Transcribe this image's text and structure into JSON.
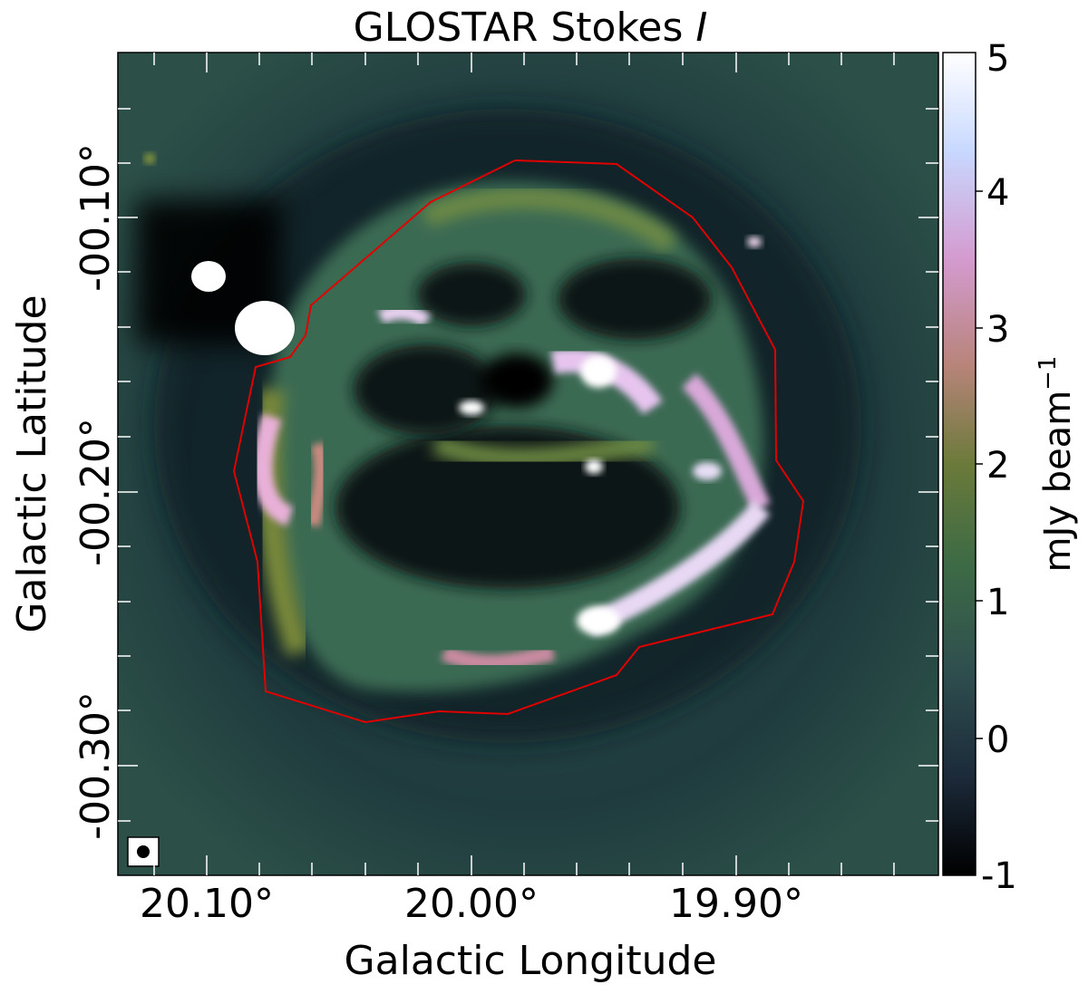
{
  "chart_data": {
    "type": "heatmap",
    "title": "GLOSTAR Stokes ",
    "title_italic": "I",
    "xlabel": "Galactic Longitude",
    "ylabel": "Galactic Latitude",
    "x_ticks": [
      "20.10°",
      "20.00°",
      "19.90°"
    ],
    "y_ticks": [
      "-00.10°",
      "-00.20°",
      "-00.30°"
    ],
    "colorbar": {
      "label": "mJy beam",
      "label_sup": "−1",
      "ticks": [
        "5",
        "4",
        "3",
        "2",
        "1",
        "0",
        "-1"
      ],
      "range": [
        -1,
        5
      ]
    },
    "colormap": [
      "#000000",
      "#1c2a3a",
      "#2f4f4f",
      "#3d6b45",
      "#6b7a3a",
      "#b8847a",
      "#d49bd0",
      "#c8d8ff",
      "#ffffff"
    ],
    "region_color": "#e00000",
    "beam_marker": true
  }
}
